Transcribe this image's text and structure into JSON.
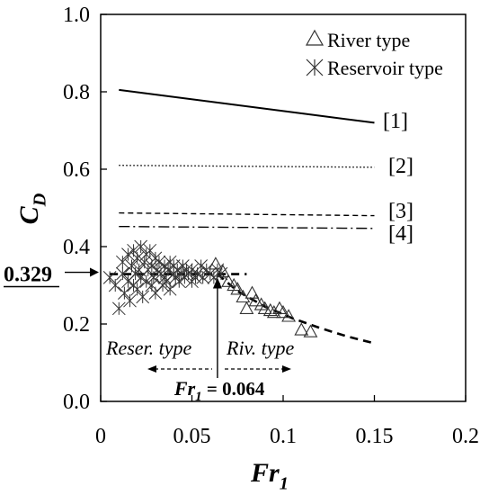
{
  "chart_data": {
    "type": "scatter",
    "title": "",
    "xlabel": "Fr",
    "xlabel_sub": "1",
    "ylabel": "C",
    "ylabel_sub": "D",
    "xlim": [
      0,
      0.2
    ],
    "ylim": [
      0,
      1.0
    ],
    "xticks": [
      "0",
      "0.05",
      "0.1",
      "0.15",
      "0.2"
    ],
    "xtick_values": [
      0,
      0.05,
      0.1,
      0.15,
      0.2
    ],
    "yticks": [
      "0.0",
      "0.2",
      "0.4",
      "0.6",
      "0.8",
      "1.0"
    ],
    "ytick_values": [
      0,
      0.2,
      0.4,
      0.6,
      0.8,
      1.0
    ],
    "grid": false,
    "legend_position": "top-right",
    "series": [
      {
        "name": "River type",
        "marker": "triangle",
        "x": [
          0.063,
          0.067,
          0.07,
          0.073,
          0.075,
          0.078,
          0.08,
          0.083,
          0.085,
          0.088,
          0.09,
          0.093,
          0.095,
          0.098,
          0.1,
          0.103,
          0.11,
          0.115
        ],
        "y": [
          0.355,
          0.335,
          0.31,
          0.3,
          0.29,
          0.27,
          0.24,
          0.28,
          0.26,
          0.25,
          0.24,
          0.235,
          0.23,
          0.24,
          0.23,
          0.22,
          0.185,
          0.18
        ]
      },
      {
        "name": "Reservoir type",
        "marker": "asterisk",
        "x": [
          0.005,
          0.008,
          0.01,
          0.012,
          0.012,
          0.013,
          0.015,
          0.015,
          0.016,
          0.017,
          0.018,
          0.018,
          0.019,
          0.02,
          0.02,
          0.021,
          0.022,
          0.022,
          0.023,
          0.024,
          0.025,
          0.025,
          0.026,
          0.027,
          0.028,
          0.028,
          0.029,
          0.03,
          0.03,
          0.031,
          0.032,
          0.033,
          0.034,
          0.035,
          0.035,
          0.036,
          0.037,
          0.038,
          0.038,
          0.04,
          0.04,
          0.041,
          0.042,
          0.043,
          0.044,
          0.045,
          0.046,
          0.047,
          0.048,
          0.05,
          0.05,
          0.052,
          0.053,
          0.055,
          0.056,
          0.058,
          0.06,
          0.062,
          0.064,
          0.066
        ],
        "y": [
          0.32,
          0.3,
          0.24,
          0.33,
          0.36,
          0.28,
          0.38,
          0.31,
          0.26,
          0.35,
          0.39,
          0.3,
          0.33,
          0.37,
          0.29,
          0.34,
          0.4,
          0.32,
          0.27,
          0.36,
          0.38,
          0.31,
          0.34,
          0.39,
          0.3,
          0.35,
          0.32,
          0.37,
          0.28,
          0.34,
          0.36,
          0.33,
          0.3,
          0.35,
          0.32,
          0.31,
          0.34,
          0.36,
          0.29,
          0.33,
          0.35,
          0.32,
          0.34,
          0.31,
          0.33,
          0.35,
          0.32,
          0.34,
          0.33,
          0.31,
          0.34,
          0.32,
          0.33,
          0.35,
          0.32,
          0.34,
          0.33,
          0.32,
          0.34,
          0.33
        ]
      }
    ],
    "lines": [
      {
        "label": "[1]",
        "style": "solid",
        "x": [
          0.01,
          0.15
        ],
        "y": [
          0.805,
          0.72
        ]
      },
      {
        "label": "[2]",
        "style": "dotted",
        "x": [
          0.01,
          0.15
        ],
        "y": [
          0.61,
          0.605
        ]
      },
      {
        "label": "[3]",
        "style": "dashed",
        "x": [
          0.01,
          0.15
        ],
        "y": [
          0.487,
          0.48
        ]
      },
      {
        "label": "[4]",
        "style": "dashdot",
        "x": [
          0.01,
          0.15
        ],
        "y": [
          0.452,
          0.447
        ]
      }
    ],
    "fit_lines": [
      {
        "style": "dashed-bold",
        "x": [
          0.005,
          0.08
        ],
        "y": [
          0.329,
          0.329
        ]
      },
      {
        "style": "dashed-bold",
        "x": [
          0.064,
          0.075,
          0.09,
          0.105,
          0.12,
          0.135,
          0.15
        ],
        "y": [
          0.329,
          0.285,
          0.245,
          0.215,
          0.19,
          0.168,
          0.15
        ]
      }
    ],
    "annotations": {
      "cd_value": "0.329",
      "threshold_label": "Fr",
      "threshold_sub": "1",
      "threshold_value": " = 0.064",
      "threshold_x": 0.064,
      "reser_label": "Reser. type",
      "riv_label": "Riv. type"
    }
  }
}
